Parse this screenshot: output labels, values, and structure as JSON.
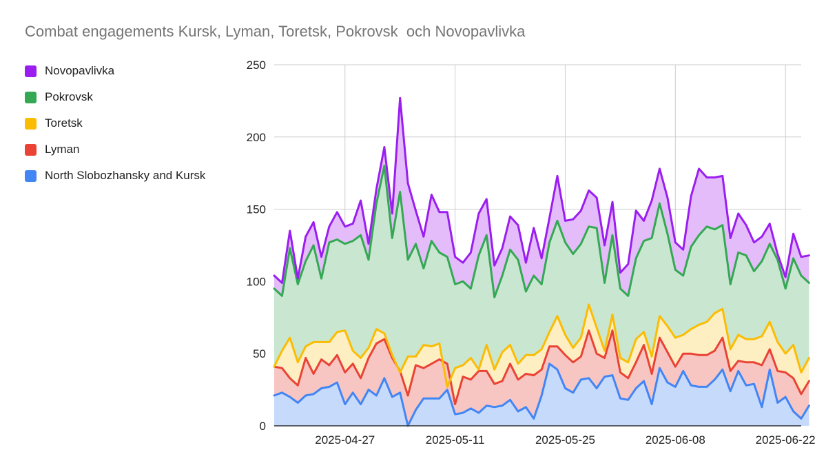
{
  "chart_data": {
    "type": "area",
    "stacked": true,
    "title": "Combat engagements Kursk, Lyman, Toretsk, Pokrovsk  och Novopavlivka",
    "xlabel": "",
    "ylabel": "",
    "ylim": [
      0,
      250
    ],
    "yticks": [
      0,
      50,
      100,
      150,
      200,
      250
    ],
    "grid": true,
    "legend_position": "left",
    "x_start": "2025-04-18",
    "x_end": "2025-06-24",
    "xticks": [
      "2025-04-27",
      "2025-05-11",
      "2025-05-25",
      "2025-06-08",
      "2025-06-22"
    ],
    "legend_order": [
      "Novopavlivka",
      "Pokrovsk",
      "Toretsk",
      "Lyman",
      "North Slobozhansky and Kursk"
    ],
    "series": [
      {
        "name": "North Slobozhansky and Kursk",
        "color": "#4285f4",
        "fill": "#c6dafc",
        "totals": [
          21,
          23,
          20,
          16,
          21,
          22,
          26,
          27,
          30,
          15,
          23,
          15,
          25,
          21,
          33,
          20,
          23,
          0,
          11,
          19,
          19,
          19,
          25,
          8,
          9,
          12,
          9,
          14,
          13,
          14,
          18,
          10,
          13,
          5,
          21,
          43,
          39,
          26,
          23,
          32,
          33,
          26,
          34,
          35,
          19,
          18,
          26,
          31,
          15,
          40,
          30,
          27,
          38,
          28,
          27,
          27,
          32,
          39,
          24,
          38,
          28,
          29,
          13,
          39,
          16,
          20,
          10,
          5,
          14
        ]
      },
      {
        "name": "Lyman",
        "color": "#ea4335",
        "fill": "#f7c6c2",
        "totals": [
          41,
          40,
          33,
          28,
          47,
          36,
          46,
          42,
          49,
          37,
          43,
          33,
          47,
          57,
          60,
          47,
          38,
          21,
          42,
          40,
          43,
          46,
          43,
          15,
          34,
          32,
          38,
          38,
          29,
          31,
          43,
          32,
          36,
          35,
          39,
          55,
          55,
          49,
          44,
          48,
          66,
          50,
          47,
          66,
          37,
          33,
          44,
          56,
          36,
          61,
          51,
          41,
          50,
          50,
          49,
          49,
          52,
          61,
          38,
          45,
          44,
          44,
          42,
          53,
          38,
          37,
          33,
          22,
          31
        ]
      },
      {
        "name": "Toretsk",
        "color": "#fbbc04",
        "fill": "#feefc3",
        "totals": [
          41,
          52,
          61,
          44,
          55,
          58,
          58,
          58,
          65,
          66,
          52,
          47,
          54,
          67,
          64,
          49,
          37,
          48,
          48,
          56,
          55,
          57,
          27,
          40,
          42,
          47,
          39,
          56,
          39,
          51,
          56,
          43,
          49,
          49,
          53,
          65,
          76,
          63,
          54,
          61,
          84,
          68,
          52,
          77,
          47,
          44,
          60,
          65,
          48,
          76,
          69,
          61,
          63,
          67,
          70,
          72,
          78,
          81,
          53,
          63,
          60,
          60,
          62,
          72,
          58,
          50,
          56,
          37,
          47
        ]
      },
      {
        "name": "Pokrovsk",
        "color": "#34a853",
        "fill": "#c9e7d0",
        "totals": [
          95,
          90,
          123,
          98,
          114,
          125,
          102,
          127,
          129,
          126,
          128,
          132,
          115,
          154,
          180,
          130,
          162,
          115,
          126,
          109,
          128,
          120,
          117,
          98,
          100,
          95,
          118,
          132,
          89,
          104,
          122,
          115,
          93,
          104,
          98,
          127,
          142,
          127,
          119,
          126,
          138,
          137,
          99,
          132,
          95,
          90,
          116,
          128,
          130,
          154,
          133,
          108,
          104,
          124,
          132,
          138,
          136,
          139,
          98,
          120,
          118,
          107,
          114,
          126,
          115,
          95,
          116,
          104,
          99
        ]
      },
      {
        "name": "Novopavlivka",
        "color": "#9b1ef0",
        "fill": "#e3bcf9",
        "totals": [
          104,
          99,
          135,
          102,
          131,
          141,
          117,
          138,
          148,
          138,
          140,
          156,
          126,
          164,
          193,
          147,
          227,
          168,
          149,
          131,
          160,
          148,
          148,
          117,
          113,
          120,
          147,
          157,
          111,
          123,
          145,
          139,
          113,
          137,
          116,
          144,
          173,
          142,
          143,
          149,
          163,
          158,
          125,
          155,
          106,
          112,
          149,
          142,
          156,
          178,
          158,
          127,
          122,
          159,
          178,
          172,
          172,
          173,
          130,
          147,
          139,
          127,
          131,
          140,
          119,
          103,
          133,
          117,
          118
        ]
      }
    ]
  }
}
